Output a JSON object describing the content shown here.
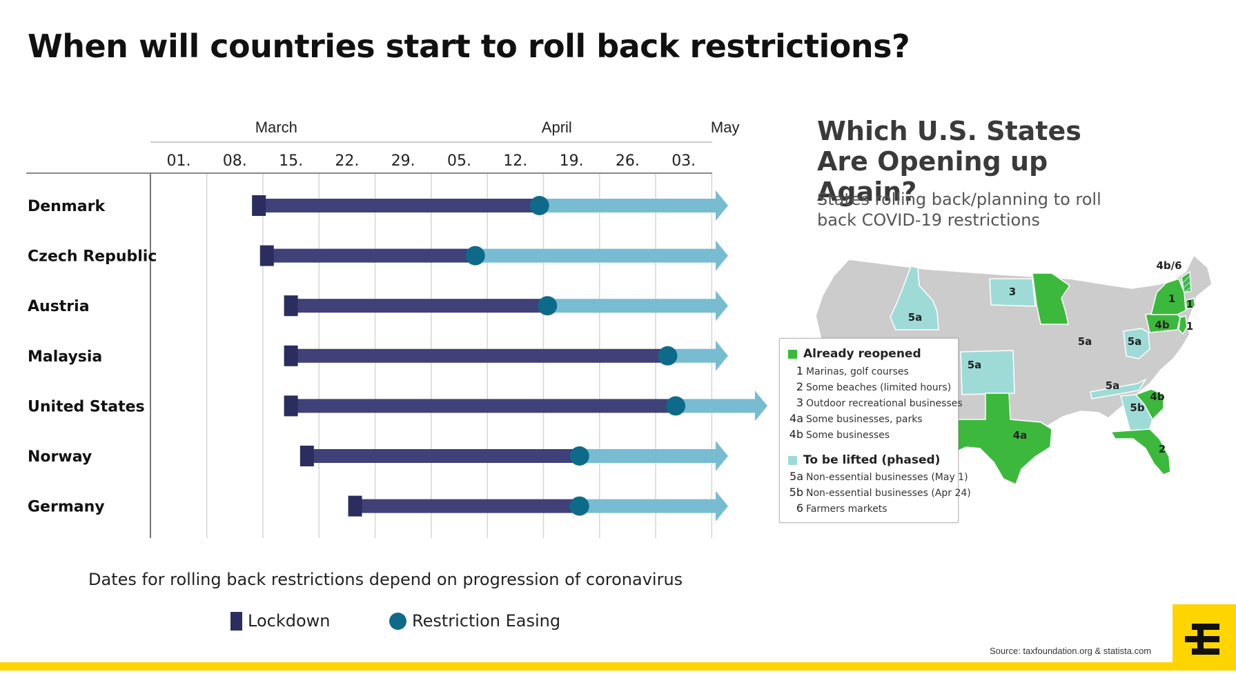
{
  "title": "When will countries start to roll back restrictions?",
  "chart_data": {
    "type": "timeline",
    "months": [
      {
        "label": "March",
        "at_tick": "08."
      },
      {
        "label": "April",
        "at_tick": "12."
      },
      {
        "label": "May",
        "at_tick": "03."
      }
    ],
    "ticks": [
      "01.",
      "08.",
      "15.",
      "22.",
      "29.",
      "05.",
      "12.",
      "19.",
      "26.",
      "03."
    ],
    "tick_dates": [
      "2020-03-01",
      "2020-03-08",
      "2020-03-15",
      "2020-03-22",
      "2020-03-29",
      "2020-04-05",
      "2020-04-12",
      "2020-04-19",
      "2020-04-26",
      "2020-05-03"
    ],
    "countries": [
      {
        "name": "Denmark",
        "lockdown": "2020-03-11",
        "easing": "2020-04-15"
      },
      {
        "name": "Czech Republic",
        "lockdown": "2020-03-12",
        "easing": "2020-04-07"
      },
      {
        "name": "Austria",
        "lockdown": "2020-03-15",
        "easing": "2020-04-16"
      },
      {
        "name": "Malaysia",
        "lockdown": "2020-03-15",
        "easing": "2020-05-01"
      },
      {
        "name": "United States",
        "lockdown": "2020-03-15",
        "easing": "2020-05-02"
      },
      {
        "name": "Norway",
        "lockdown": "2020-03-17",
        "easing": "2020-04-20"
      },
      {
        "name": "Germany",
        "lockdown": "2020-03-23",
        "easing": "2020-04-20"
      }
    ],
    "legend": [
      "Lockdown",
      "Restriction Easing"
    ],
    "colors": {
      "lockdown": "#3f4178",
      "lockdown_marker": "#2b2d5e",
      "easing": "#78bcd2",
      "easing_marker": "#0e6a89"
    }
  },
  "note": "Dates for rolling back restrictions depend on progression of coronavirus",
  "map": {
    "title": "Which U.S. States Are Opening up Again?",
    "subtitle": "States rolling back/planning to roll back COVID-19 restrictions",
    "colors": {
      "reopened": "#3cb93c",
      "to_be_lifted": "#9edbd6",
      "other": "#cccccc"
    },
    "labels": [
      "5a",
      "5a",
      "3",
      "5a",
      "5a",
      "5a",
      "5b",
      "4b",
      "4a",
      "2",
      "1",
      "1",
      "4b",
      "1",
      "4b/6"
    ],
    "legend": {
      "reopened_heading": "Already reopened",
      "reopened_items": [
        {
          "code": "1",
          "text": "Marinas, golf courses"
        },
        {
          "code": "2",
          "text": "Some beaches (limited hours)"
        },
        {
          "code": "3",
          "text": "Outdoor recreational businesses"
        },
        {
          "code": "4a",
          "text": "Some businesses, parks"
        },
        {
          "code": "4b",
          "text": "Some businesses"
        }
      ],
      "lifted_heading": "To be lifted (phased)",
      "lifted_items": [
        {
          "code": "5a",
          "text": "Non-essential businesses (May 1)"
        },
        {
          "code": "5b",
          "text": "Non-essential businesses (Apr 24)"
        },
        {
          "code": "6",
          "text": "Farmers markets"
        }
      ]
    }
  },
  "source": "Source: taxfoundation.org & statista.com"
}
